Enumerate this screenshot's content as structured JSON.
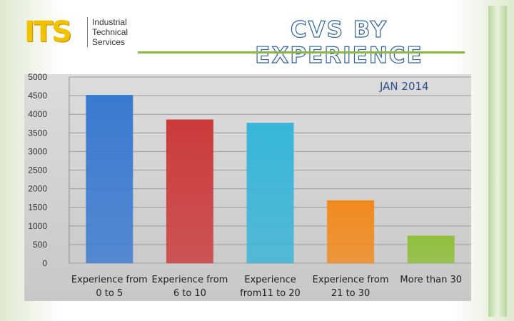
{
  "logo": {
    "brand": "ITS",
    "sub_lines": [
      "Industrial",
      "Technical",
      "Services"
    ]
  },
  "title": "CVS BY EXPERIENCE",
  "date_label": "JAN 2014",
  "colors": [
    "#3a7ad1",
    "#cc3a3a",
    "#37b5d8",
    "#f28a1e",
    "#8fbf3a"
  ],
  "chart_data": {
    "type": "bar",
    "title": "CVS BY EXPERIENCE",
    "subtitle": "JAN 2014",
    "categories": [
      [
        "Experience from",
        "0 to 5"
      ],
      [
        "Experience from",
        "6 to 10"
      ],
      [
        "Experience",
        "from11 to 20"
      ],
      [
        "Experience from",
        "21 to 30"
      ],
      [
        "More than 30"
      ]
    ],
    "values": [
      4520,
      3860,
      3770,
      1690,
      740
    ],
    "ylim": [
      0,
      5000
    ],
    "yticks": [
      "0",
      "500",
      "1000",
      "1500",
      "2000",
      "2500",
      "3000",
      "3500",
      "4000",
      "4500",
      "5000"
    ],
    "xlabel": "",
    "ylabel": "",
    "grid": true
  }
}
